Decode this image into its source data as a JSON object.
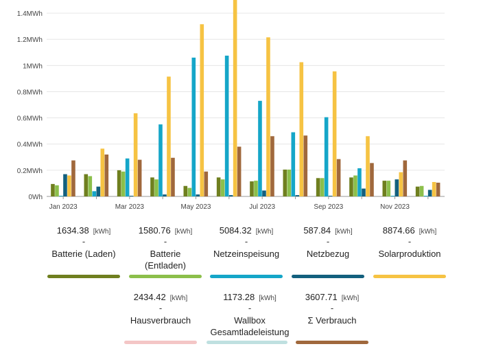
{
  "chart_data": {
    "type": "bar",
    "categories": [
      "Jan 2023",
      "Feb 2023",
      "Mar 2023",
      "Apr 2023",
      "May 2023",
      "Jun 2023",
      "Jul 2023",
      "Aug 2023",
      "Sep 2023",
      "Oct 2023",
      "Nov 2023",
      "Dec 2023"
    ],
    "x_tick_labels": [
      "Jan 2023",
      "Mar 2023",
      "May 2023",
      "Jul 2023",
      "Sep 2023",
      "Nov 2023"
    ],
    "y_tick_labels": [
      "0Wh",
      "0.2MWh",
      "0.4MWh",
      "0.6MWh",
      "0.8MWh",
      "1MWh",
      "1.2MWh",
      "1.4MWh"
    ],
    "y_ticks": [
      0,
      0.2,
      0.4,
      0.6,
      0.8,
      1.0,
      1.2,
      1.4
    ],
    "ylim": [
      0,
      1.5
    ],
    "grid": true,
    "series": [
      {
        "name": "Batterie (Laden)",
        "color": "#6f7f1f",
        "values": [
          0.095,
          0.17,
          0.2,
          0.145,
          0.08,
          0.145,
          0.115,
          0.205,
          0.14,
          0.145,
          0.12,
          0.075
        ]
      },
      {
        "name": "Batterie (Entladen)",
        "color": "#8cbf4b",
        "values": [
          0.085,
          0.155,
          0.19,
          0.13,
          0.065,
          0.13,
          0.12,
          0.205,
          0.14,
          0.16,
          0.12,
          0.08
        ]
      },
      {
        "name": "Netzeinspeisung",
        "color": "#15a6c8",
        "values": [
          0.005,
          0.04,
          0.29,
          0.55,
          1.06,
          1.075,
          0.73,
          0.49,
          0.605,
          0.215,
          0.005,
          0.005
        ]
      },
      {
        "name": "Netzbezug",
        "color": "#13607e",
        "values": [
          0.17,
          0.075,
          0.005,
          0.015,
          0.015,
          0.01,
          0.045,
          0.01,
          0.005,
          0.06,
          0.13,
          0.05
        ]
      },
      {
        "name": "Solarproduktion",
        "color": "#f6c343",
        "values": [
          0.16,
          0.365,
          0.635,
          0.915,
          1.315,
          1.51,
          1.215,
          1.025,
          0.955,
          0.46,
          0.185,
          0.11
        ]
      },
      {
        "name": "Σ Verbrauch",
        "color": "#a0683c",
        "values": [
          0.275,
          0.32,
          0.28,
          0.295,
          0.19,
          0.38,
          0.46,
          0.465,
          0.285,
          0.255,
          0.275,
          0.105
        ]
      }
    ]
  },
  "summary": [
    {
      "value": "1634.38",
      "unit": "[kWh]",
      "dash": "-",
      "label_lines": [
        "Batterie (Laden)"
      ],
      "color": "#6f7f1f"
    },
    {
      "value": "1580.76",
      "unit": "[kWh]",
      "dash": "-",
      "label_lines": [
        "Batterie",
        "(Entladen)"
      ],
      "color": "#8cbf4b"
    },
    {
      "value": "5084.32",
      "unit": "[kWh]",
      "dash": "-",
      "label_lines": [
        "Netzeinspeisung"
      ],
      "color": "#15a6c8"
    },
    {
      "value": "587.84",
      "unit": "[kWh]",
      "dash": "-",
      "label_lines": [
        "Netzbezug"
      ],
      "color": "#13607e"
    },
    {
      "value": "8874.66",
      "unit": "[kWh]",
      "dash": "-",
      "label_lines": [
        "Solarproduktion"
      ],
      "color": "#f6c343"
    },
    {
      "value": "2434.42",
      "unit": "[kWh]",
      "dash": "-",
      "label_lines": [
        "Hausverbrauch"
      ],
      "color": "#f4c6c6"
    },
    {
      "value": "1173.28",
      "unit": "[kWh]",
      "dash": "-",
      "label_lines": [
        "Wallbox",
        "Gesamtladeleistung"
      ],
      "color": "#bfe0e0"
    },
    {
      "value": "3607.71",
      "unit": "[kWh]",
      "dash": "-",
      "label_lines": [
        "Σ Verbrauch"
      ],
      "color": "#a0683c"
    }
  ]
}
